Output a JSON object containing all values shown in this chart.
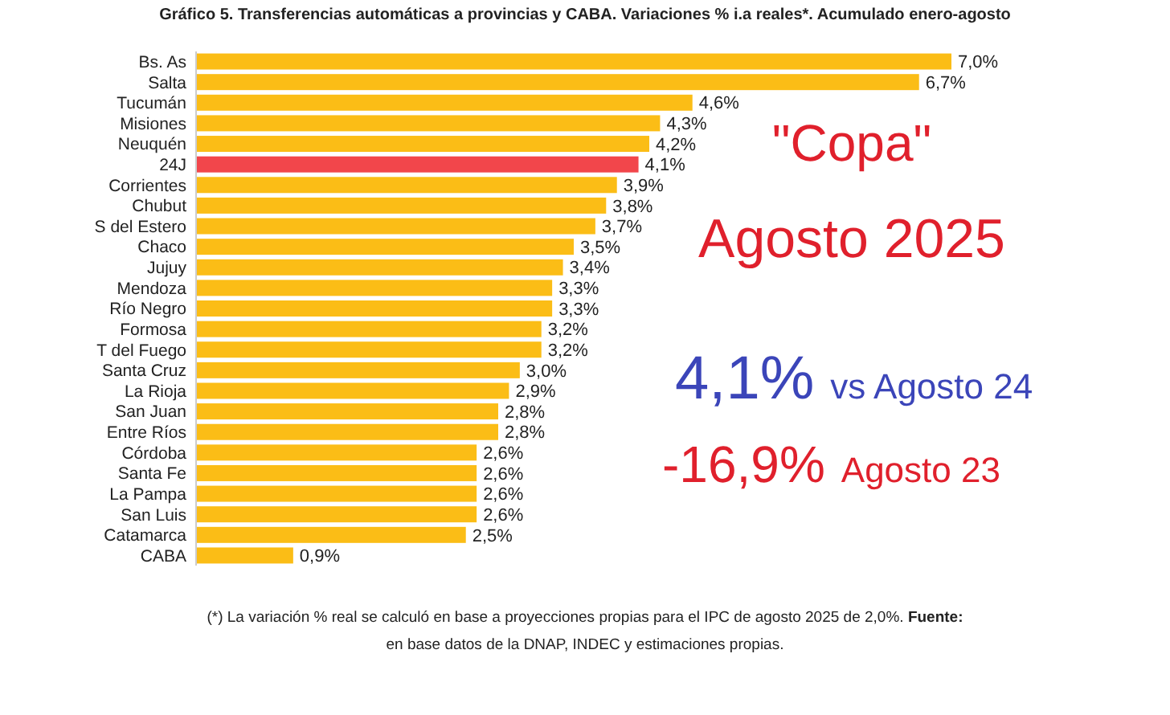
{
  "chart_data": {
    "type": "bar",
    "orientation": "horizontal",
    "title": "Gráfico 5. Transferencias automáticas a provincias y CABA. Variaciones % i.a reales*. Acumulado enero-agosto",
    "categories": [
      "Bs. As",
      "Salta",
      "Tucumán",
      "Misiones",
      "Neuquén",
      "24J",
      "Corrientes",
      "Chubut",
      "S del Estero",
      "Chaco",
      "Jujuy",
      "Mendoza",
      "Río Negro",
      "Formosa",
      "T del Fuego",
      "Santa Cruz",
      "La Rioja",
      "San Juan",
      "Entre Ríos",
      "Córdoba",
      "Santa Fe",
      "La Pampa",
      "San Luis",
      "Catamarca",
      "CABA"
    ],
    "values": [
      7.0,
      6.7,
      4.6,
      4.3,
      4.2,
      4.1,
      3.9,
      3.8,
      3.7,
      3.5,
      3.4,
      3.3,
      3.3,
      3.2,
      3.2,
      3.0,
      2.9,
      2.8,
      2.8,
      2.6,
      2.6,
      2.6,
      2.6,
      2.5,
      0.9
    ],
    "value_labels": [
      "7,0%",
      "6,7%",
      "4,6%",
      "4,3%",
      "4,2%",
      "4,1%",
      "3,9%",
      "3,8%",
      "3,7%",
      "3,5%",
      "3,4%",
      "3,3%",
      "3,3%",
      "3,2%",
      "3,2%",
      "3,0%",
      "2,9%",
      "2,8%",
      "2,8%",
      "2,6%",
      "2,6%",
      "2,6%",
      "2,6%",
      "2,5%",
      "0,9%"
    ],
    "colors": [
      "#fbbd16",
      "#fbbd16",
      "#fbbd16",
      "#fbbd16",
      "#fbbd16",
      "#f2464b",
      "#fbbd16",
      "#fbbd16",
      "#fbbd16",
      "#fbbd16",
      "#fbbd16",
      "#fbbd16",
      "#fbbd16",
      "#fbbd16",
      "#fbbd16",
      "#fbbd16",
      "#fbbd16",
      "#fbbd16",
      "#fbbd16",
      "#fbbd16",
      "#fbbd16",
      "#fbbd16",
      "#fbbd16",
      "#fbbd16",
      "#fbbd16"
    ],
    "annotations": [
      "\"Copa\"",
      "Agosto 2025",
      "4,1%",
      "vs Agosto 24",
      "-16,9%",
      "Agosto 23",
      "(*) La variación % real se calculó en base a proyecciones propias para el IPC de agosto 2025 de 2,0%.",
      "Fuente:",
      "en base datos de la DNAP, INDEC y estimaciones propias."
    ]
  }
}
